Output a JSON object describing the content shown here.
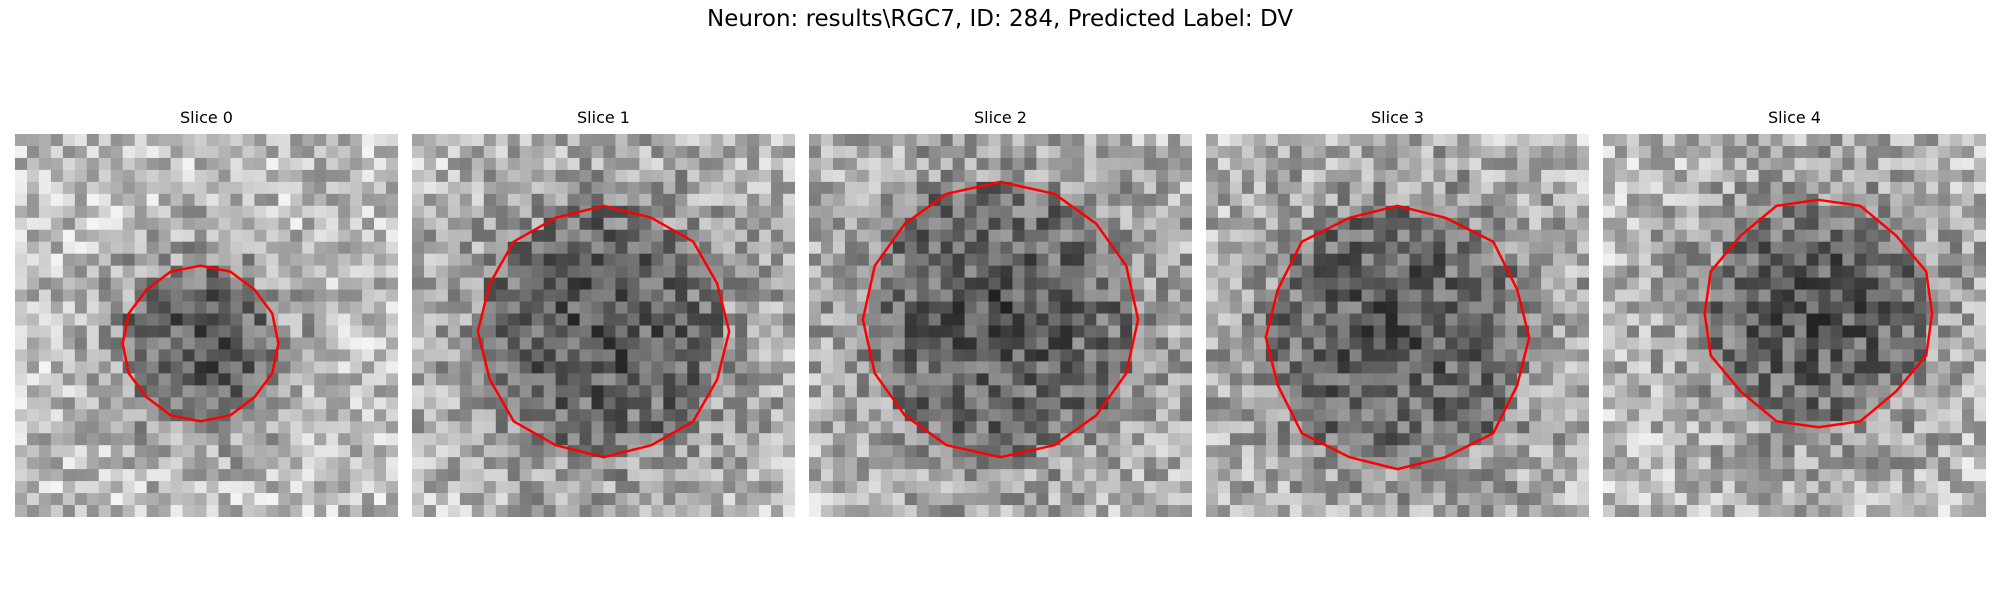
{
  "figure": {
    "title": "Neuron: results\\RGC7, ID: 284, Predicted Label: DV",
    "outline_color": "#ff0000",
    "colormap": "grayscale"
  },
  "slices": [
    {
      "title": "Slice 0"
    },
    {
      "title": "Slice 1"
    },
    {
      "title": "Slice 2"
    },
    {
      "title": "Slice 3"
    },
    {
      "title": "Slice 4"
    }
  ]
}
